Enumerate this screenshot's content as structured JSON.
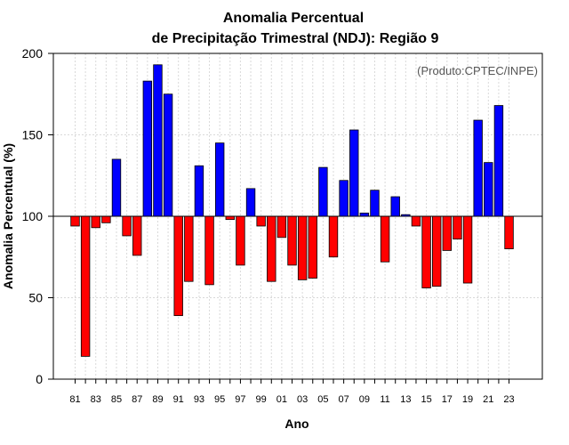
{
  "chart_data": {
    "type": "bar",
    "title_line1": "Anomalia Percentual",
    "title_line2": "de Precipitação Trimestral (NDJ): Região 9",
    "xlabel": "Ano",
    "ylabel": "Anomalia Percentual (%)",
    "credit": "(Produto:CPTEC/INPE)",
    "baseline": 100,
    "ylim": [
      0,
      200
    ],
    "yticks": [
      "0",
      "50",
      "100",
      "150",
      "200"
    ],
    "ytick_values": [
      0,
      50,
      100,
      150,
      200
    ],
    "categories": [
      "81",
      "82",
      "83",
      "84",
      "85",
      "86",
      "87",
      "88",
      "89",
      "90",
      "91",
      "92",
      "93",
      "94",
      "95",
      "96",
      "97",
      "98",
      "99",
      "00",
      "01",
      "02",
      "03",
      "04",
      "05",
      "06",
      "07",
      "08",
      "09",
      "10",
      "11",
      "12",
      "13",
      "14",
      "15",
      "16",
      "17",
      "18",
      "19",
      "20",
      "21",
      "22",
      "23"
    ],
    "xtick_labels": [
      "81",
      "83",
      "85",
      "87",
      "89",
      "91",
      "93",
      "95",
      "97",
      "99",
      "01",
      "03",
      "05",
      "07",
      "09",
      "11",
      "13",
      "15",
      "17",
      "19",
      "21",
      "23"
    ],
    "values": [
      94,
      14,
      93,
      96,
      135,
      88,
      76,
      183,
      193,
      175,
      39,
      60,
      131,
      58,
      145,
      98,
      70,
      117,
      94,
      60,
      87,
      70,
      61,
      62,
      130,
      75,
      122,
      153,
      102,
      116,
      72,
      112,
      101,
      94,
      56,
      57,
      79,
      86,
      59,
      159,
      133,
      168,
      80
    ],
    "colors": {
      "above": "#0000ff",
      "below": "#ff0000",
      "grid": "#d9d9d9",
      "border": "#000000"
    }
  }
}
